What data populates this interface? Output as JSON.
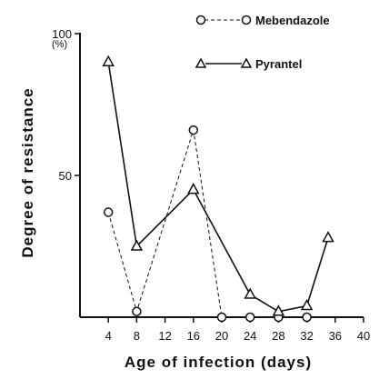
{
  "chart_data": {
    "type": "line",
    "xlabel": "Age of infection (days)",
    "ylabel": "Degree of resistance",
    "y_unit": "(%)",
    "xlim": [
      0,
      40
    ],
    "ylim": [
      0,
      100
    ],
    "x_ticks": [
      4,
      8,
      12,
      16,
      20,
      24,
      28,
      32,
      36,
      40
    ],
    "y_ticks": [
      50,
      100
    ],
    "grid": false,
    "legend_position": "top-right",
    "series": [
      {
        "name": "Mebendazole",
        "style": "dashed",
        "marker": "circle",
        "x": [
          4,
          8,
          16,
          20,
          24,
          28,
          32
        ],
        "y": [
          37,
          2,
          66,
          0,
          0,
          0,
          0
        ]
      },
      {
        "name": "Pyrantel",
        "style": "solid",
        "marker": "triangle",
        "x": [
          4,
          8,
          16,
          24,
          28,
          32,
          35
        ],
        "y": [
          90,
          25,
          45,
          8,
          2,
          4,
          28
        ]
      }
    ]
  }
}
